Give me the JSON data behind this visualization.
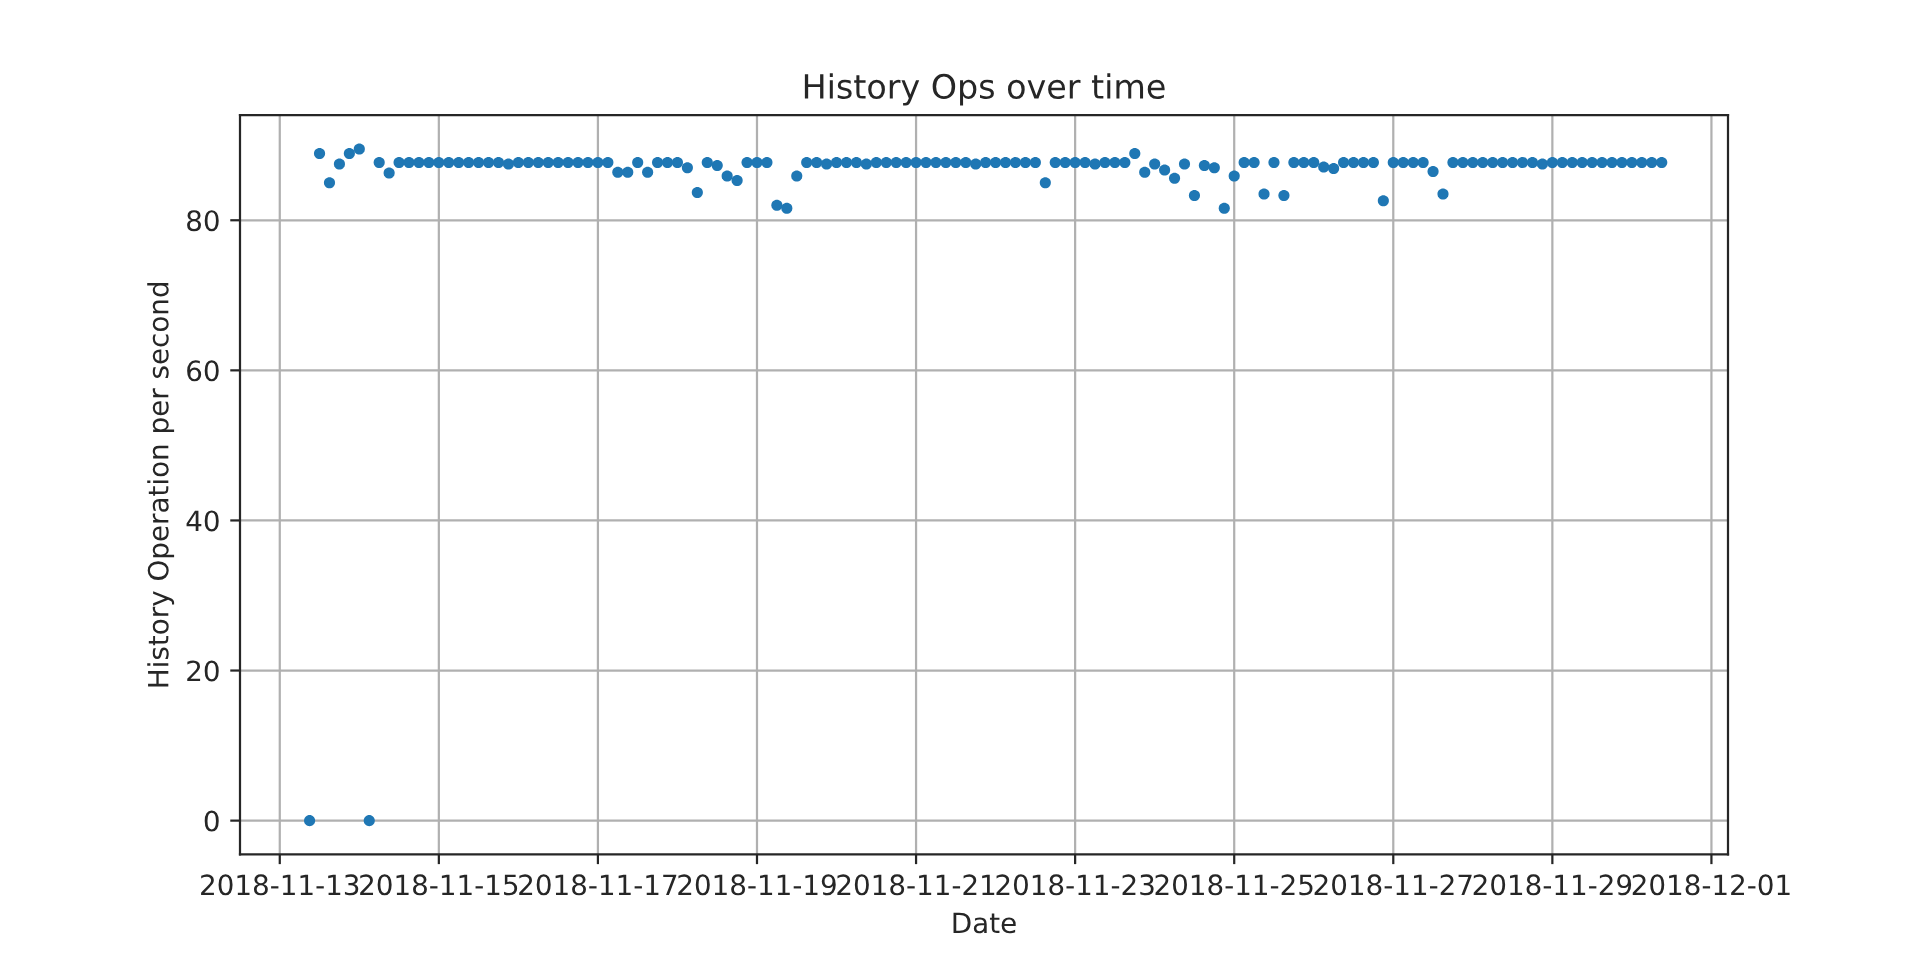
{
  "chart_data": {
    "type": "scatter",
    "title": "History Ops over time",
    "xlabel": "Date",
    "ylabel": "History Operation per second",
    "x": [
      "2018-11-13T09:00",
      "2018-11-13T12:00",
      "2018-11-13T15:00",
      "2018-11-13T18:00",
      "2018-11-13T21:00",
      "2018-11-14T00:00",
      "2018-11-14T03:00",
      "2018-11-14T06:00",
      "2018-11-14T09:00",
      "2018-11-14T12:00",
      "2018-11-14T15:00",
      "2018-11-14T18:00",
      "2018-11-14T21:00",
      "2018-11-15T00:00",
      "2018-11-15T03:00",
      "2018-11-15T06:00",
      "2018-11-15T09:00",
      "2018-11-15T12:00",
      "2018-11-15T15:00",
      "2018-11-15T18:00",
      "2018-11-15T21:00",
      "2018-11-16T00:00",
      "2018-11-16T03:00",
      "2018-11-16T06:00",
      "2018-11-16T09:00",
      "2018-11-16T12:00",
      "2018-11-16T15:00",
      "2018-11-16T18:00",
      "2018-11-16T21:00",
      "2018-11-17T00:00",
      "2018-11-17T03:00",
      "2018-11-17T06:00",
      "2018-11-17T09:00",
      "2018-11-17T12:00",
      "2018-11-17T15:00",
      "2018-11-17T18:00",
      "2018-11-17T21:00",
      "2018-11-18T00:00",
      "2018-11-18T03:00",
      "2018-11-18T06:00",
      "2018-11-18T09:00",
      "2018-11-18T12:00",
      "2018-11-18T15:00",
      "2018-11-18T18:00",
      "2018-11-18T21:00",
      "2018-11-19T00:00",
      "2018-11-19T03:00",
      "2018-11-19T06:00",
      "2018-11-19T09:00",
      "2018-11-19T12:00",
      "2018-11-19T15:00",
      "2018-11-19T18:00",
      "2018-11-19T21:00",
      "2018-11-20T00:00",
      "2018-11-20T03:00",
      "2018-11-20T06:00",
      "2018-11-20T09:00",
      "2018-11-20T12:00",
      "2018-11-20T15:00",
      "2018-11-20T18:00",
      "2018-11-20T21:00",
      "2018-11-21T00:00",
      "2018-11-21T03:00",
      "2018-11-21T06:00",
      "2018-11-21T09:00",
      "2018-11-21T12:00",
      "2018-11-21T15:00",
      "2018-11-21T18:00",
      "2018-11-21T21:00",
      "2018-11-22T00:00",
      "2018-11-22T03:00",
      "2018-11-22T06:00",
      "2018-11-22T09:00",
      "2018-11-22T12:00",
      "2018-11-22T15:00",
      "2018-11-22T18:00",
      "2018-11-22T21:00",
      "2018-11-23T00:00",
      "2018-11-23T03:00",
      "2018-11-23T06:00",
      "2018-11-23T09:00",
      "2018-11-23T12:00",
      "2018-11-23T15:00",
      "2018-11-23T18:00",
      "2018-11-23T21:00",
      "2018-11-24T00:00",
      "2018-11-24T03:00",
      "2018-11-24T06:00",
      "2018-11-24T09:00",
      "2018-11-24T12:00",
      "2018-11-24T15:00",
      "2018-11-24T18:00",
      "2018-11-24T21:00",
      "2018-11-25T00:00",
      "2018-11-25T03:00",
      "2018-11-25T06:00",
      "2018-11-25T09:00",
      "2018-11-25T12:00",
      "2018-11-25T15:00",
      "2018-11-25T18:00",
      "2018-11-25T21:00",
      "2018-11-26T00:00",
      "2018-11-26T03:00",
      "2018-11-26T06:00",
      "2018-11-26T09:00",
      "2018-11-26T12:00",
      "2018-11-26T15:00",
      "2018-11-26T18:00",
      "2018-11-26T21:00",
      "2018-11-27T00:00",
      "2018-11-27T03:00",
      "2018-11-27T06:00",
      "2018-11-27T09:00",
      "2018-11-27T12:00",
      "2018-11-27T15:00",
      "2018-11-27T18:00",
      "2018-11-27T21:00",
      "2018-11-28T00:00",
      "2018-11-28T03:00",
      "2018-11-28T06:00",
      "2018-11-28T09:00",
      "2018-11-28T12:00",
      "2018-11-28T15:00",
      "2018-11-28T18:00",
      "2018-11-28T21:00",
      "2018-11-29T00:00",
      "2018-11-29T03:00",
      "2018-11-29T06:00",
      "2018-11-29T09:00",
      "2018-11-29T12:00",
      "2018-11-29T15:00",
      "2018-11-29T18:00",
      "2018-11-29T21:00",
      "2018-11-30T00:00",
      "2018-11-30T03:00",
      "2018-11-30T06:00",
      "2018-11-30T09:00"
    ],
    "series": [
      {
        "color": "#1f77b4",
        "values": [
          0,
          88.9,
          85.0,
          87.5,
          88.9,
          89.5,
          0,
          87.7,
          86.3,
          87.7,
          87.7,
          87.7,
          87.7,
          87.7,
          87.7,
          87.7,
          87.7,
          87.7,
          87.7,
          87.7,
          87.5,
          87.7,
          87.7,
          87.7,
          87.7,
          87.7,
          87.7,
          87.7,
          87.7,
          87.7,
          87.7,
          86.4,
          86.4,
          87.7,
          86.4,
          87.7,
          87.7,
          87.7,
          87.0,
          83.7,
          87.7,
          87.3,
          85.9,
          85.3,
          87.7,
          87.7,
          87.7,
          82.0,
          81.6,
          85.9,
          87.7,
          87.7,
          87.5,
          87.7,
          87.7,
          87.7,
          87.5,
          87.7,
          87.7,
          87.7,
          87.7,
          87.7,
          87.7,
          87.7,
          87.7,
          87.7,
          87.7,
          87.5,
          87.7,
          87.7,
          87.7,
          87.7,
          87.7,
          87.7,
          85.0,
          87.7,
          87.7,
          87.7,
          87.7,
          87.5,
          87.7,
          87.7,
          87.7,
          88.9,
          86.4,
          87.5,
          86.7,
          85.6,
          87.5,
          83.3,
          87.3,
          87.0,
          81.6,
          85.9,
          87.7,
          87.7,
          83.5,
          87.7,
          83.3,
          87.7,
          87.7,
          87.7,
          87.1,
          86.9,
          87.7,
          87.7,
          87.7,
          87.7,
          82.6,
          87.7,
          87.7,
          87.7,
          87.7,
          86.5,
          83.5,
          87.7,
          87.7,
          87.7,
          87.7,
          87.7,
          87.7,
          87.7,
          87.7,
          87.7,
          87.5,
          87.7,
          87.7,
          87.7,
          87.7,
          87.7,
          87.7,
          87.7,
          87.7,
          87.7,
          87.7,
          87.7,
          87.7
        ]
      }
    ],
    "xlim": [
      "2018-11-12T12:00",
      "2018-12-01T05:00"
    ],
    "xticks": [
      "2018-11-13",
      "2018-11-15",
      "2018-11-17",
      "2018-11-19",
      "2018-11-21",
      "2018-11-23",
      "2018-11-25",
      "2018-11-27",
      "2018-11-29",
      "2018-12-01"
    ],
    "ylim": [
      -4.5,
      94
    ],
    "yticks": [
      0,
      20,
      40,
      60,
      80
    ],
    "grid": true,
    "marker": "circle"
  }
}
